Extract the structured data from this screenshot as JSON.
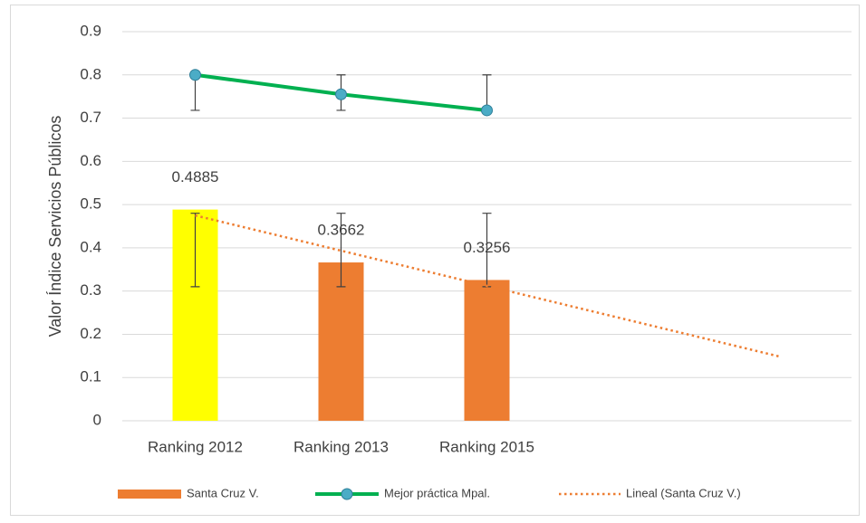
{
  "chart_data": {
    "type": "bar_line",
    "y_label": "Valor Índice Servicios Públicos",
    "categories": [
      "Ranking 2012",
      "Ranking 2013",
      "Ranking 2015",
      null,
      null
    ],
    "ylim": [
      0,
      0.9
    ],
    "yticks": [
      0,
      0.1,
      0.2,
      0.3,
      0.4,
      0.5,
      0.6,
      0.7,
      0.8,
      0.9
    ],
    "grid": true,
    "legend": "bottom",
    "series": [
      {
        "name": "Santa Cruz V.",
        "type": "bar",
        "color": "#ed7d31",
        "point_colors": [
          "#ffff00",
          "#ed7d31",
          "#ed7d31",
          null,
          null
        ],
        "values": [
          0.4885,
          0.3662,
          0.3256,
          null,
          null
        ],
        "error_low": [
          0.31,
          0.31,
          0.31,
          null,
          null
        ],
        "error_high": [
          0.48,
          0.48,
          0.48,
          null,
          null
        ],
        "data_labels": true
      },
      {
        "name": "Mejor práctica Mpal.",
        "type": "line",
        "color": "#00b050",
        "marker_color": "#4bacc6",
        "values": [
          0.8,
          0.755,
          0.718,
          null,
          null
        ],
        "error_low": [
          0.718,
          0.718,
          0.718,
          null,
          null
        ],
        "error_high": [
          0.8,
          0.8,
          0.8,
          null,
          null
        ]
      }
    ],
    "trendline": {
      "name": "Lineal (Santa Cruz V.)",
      "series": 0,
      "kind": "linear",
      "color": "#ed7d31"
    }
  }
}
